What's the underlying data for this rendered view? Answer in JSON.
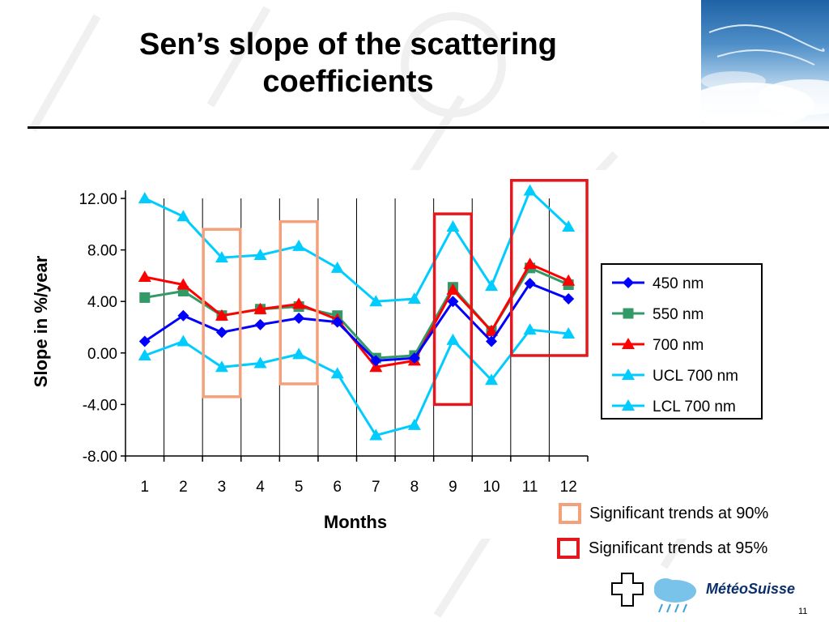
{
  "slide": {
    "title_line1": "Sen’s slope of the scattering",
    "title_line2": "coefficients",
    "page_number": "11"
  },
  "key": {
    "significant_90": "Significant trends at 90%",
    "significant_95": "Significant trends at 95%",
    "color_90": "#F4A07A",
    "color_95": "#E4181C"
  },
  "logo": {
    "text": "MétéoSuisse"
  },
  "chart_data": {
    "type": "line",
    "xlabel": "Months",
    "ylabel": "Slope in %/year",
    "ylim": [
      -8,
      12
    ],
    "yticks": [
      12,
      8,
      4,
      0,
      -4,
      -8
    ],
    "ytick_labels": [
      "12.00",
      "8.00",
      "4.00",
      "0.00",
      "-4.00",
      "-8.00"
    ],
    "categories": [
      "1",
      "2",
      "3",
      "4",
      "5",
      "6",
      "7",
      "8",
      "9",
      "10",
      "11",
      "12"
    ],
    "grid": "vertical",
    "legend_position": "right",
    "series": [
      {
        "name": "450 nm",
        "color": "#0000FF",
        "marker": "diamond",
        "values": [
          0.9,
          2.9,
          1.6,
          2.2,
          2.7,
          2.4,
          -0.6,
          -0.4,
          4.0,
          0.9,
          5.4,
          4.2
        ]
      },
      {
        "name": "550 nm",
        "color": "#339966",
        "marker": "square",
        "values": [
          4.3,
          4.8,
          2.9,
          3.4,
          3.6,
          2.9,
          -0.4,
          -0.2,
          5.1,
          1.7,
          6.6,
          5.3
        ]
      },
      {
        "name": "700 nm",
        "color": "#FF0000",
        "marker": "triangle",
        "values": [
          5.9,
          5.3,
          2.9,
          3.4,
          3.8,
          2.6,
          -1.1,
          -0.6,
          4.9,
          1.7,
          6.9,
          5.6
        ]
      },
      {
        "name": "UCL 700 nm",
        "color": "#00CCFF",
        "marker": "triangle",
        "values": [
          12.0,
          10.6,
          7.4,
          7.6,
          8.3,
          6.6,
          4.0,
          4.2,
          9.8,
          5.2,
          12.6,
          9.8
        ]
      },
      {
        "name": "LCL 700 nm",
        "color": "#00CCFF",
        "marker": "triangle",
        "values": [
          -0.2,
          0.9,
          -1.1,
          -0.8,
          -0.1,
          -1.6,
          -6.4,
          -5.6,
          1.0,
          -2.1,
          1.8,
          1.5
        ]
      }
    ],
    "significance_boxes": [
      {
        "level": "90%",
        "months": [
          3
        ],
        "y_range": [
          -3.4,
          9.6
        ]
      },
      {
        "level": "90%",
        "months": [
          5
        ],
        "y_range": [
          -2.4,
          10.2
        ]
      },
      {
        "level": "95%",
        "months": [
          9
        ],
        "y_range": [
          -4.0,
          10.8
        ]
      },
      {
        "level": "95%",
        "months": [
          11,
          12
        ],
        "y_range": [
          -0.2,
          13.4
        ]
      }
    ]
  }
}
